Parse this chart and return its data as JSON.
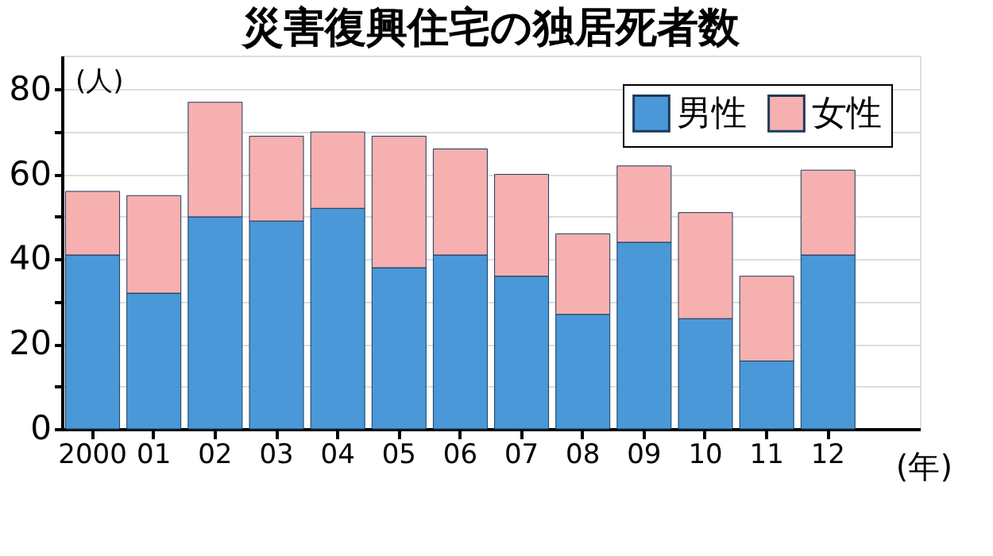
{
  "chart_data": {
    "type": "bar",
    "title": "災害復興住宅の独居死者数",
    "xlabel": "(年)",
    "ylabel": "(人)",
    "categories": [
      "2000",
      "01",
      "02",
      "03",
      "04",
      "05",
      "06",
      "07",
      "08",
      "09",
      "10",
      "11",
      "12"
    ],
    "stacked": true,
    "series": [
      {
        "name": "男性",
        "color": "#4a98d8",
        "values": [
          41,
          32,
          50,
          49,
          52,
          38,
          41,
          36,
          27,
          44,
          26,
          16,
          41
        ]
      },
      {
        "name": "女性",
        "color": "#f7b0b0",
        "values": [
          15,
          23,
          27,
          20,
          18,
          31,
          25,
          24,
          19,
          18,
          25,
          20,
          20
        ]
      }
    ],
    "ylim": [
      0,
      88
    ],
    "yticks": [
      0,
      {
        "value": 10,
        "label": null
      },
      20,
      {
        "value": 30,
        "label": null
      },
      40,
      {
        "value": 50,
        "label": null
      },
      60,
      {
        "value": 70,
        "label": null
      },
      80
    ],
    "grid": "y",
    "legend": "top right"
  }
}
